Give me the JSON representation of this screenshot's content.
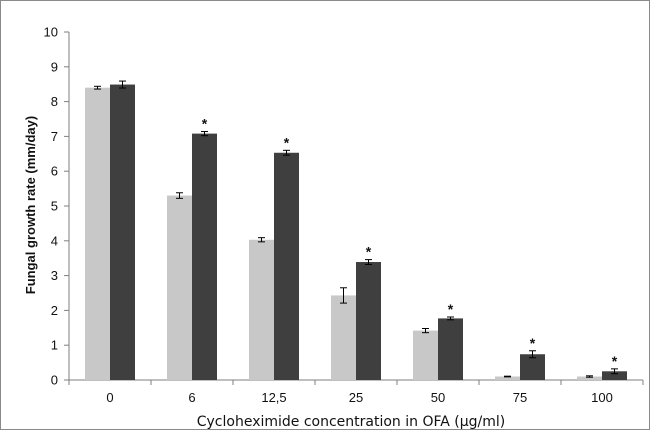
{
  "chart_data": {
    "type": "bar",
    "title": "",
    "xlabel": "Cycloheximide concentration in OFA (μg/ml)",
    "ylabel": "Fungal growth rate (mm/day)",
    "ylim": [
      0,
      10
    ],
    "yticks": [
      "0",
      "1",
      "2",
      "3",
      "4",
      "5",
      "6",
      "7",
      "8",
      "9",
      "10"
    ],
    "grid": false,
    "legend": "none",
    "categories": [
      "0",
      "6",
      "12,5",
      "25",
      "50",
      "75",
      "100"
    ],
    "series": [
      {
        "color": "#c8c8c8",
        "values": [
          8.4,
          5.3,
          4.03,
          2.43,
          1.42,
          0.1,
          0.1
        ],
        "errors": [
          0.04,
          0.08,
          0.06,
          0.22,
          0.06,
          0.01,
          0.02
        ]
      },
      {
        "color": "#3f3f3f",
        "values": [
          8.49,
          7.08,
          6.53,
          3.39,
          1.77,
          0.74,
          0.25
        ],
        "errors": [
          0.1,
          0.06,
          0.07,
          0.07,
          0.04,
          0.1,
          0.07
        ]
      }
    ],
    "significance_marker": "*",
    "significant": [
      false,
      true,
      true,
      true,
      true,
      true,
      true
    ]
  }
}
